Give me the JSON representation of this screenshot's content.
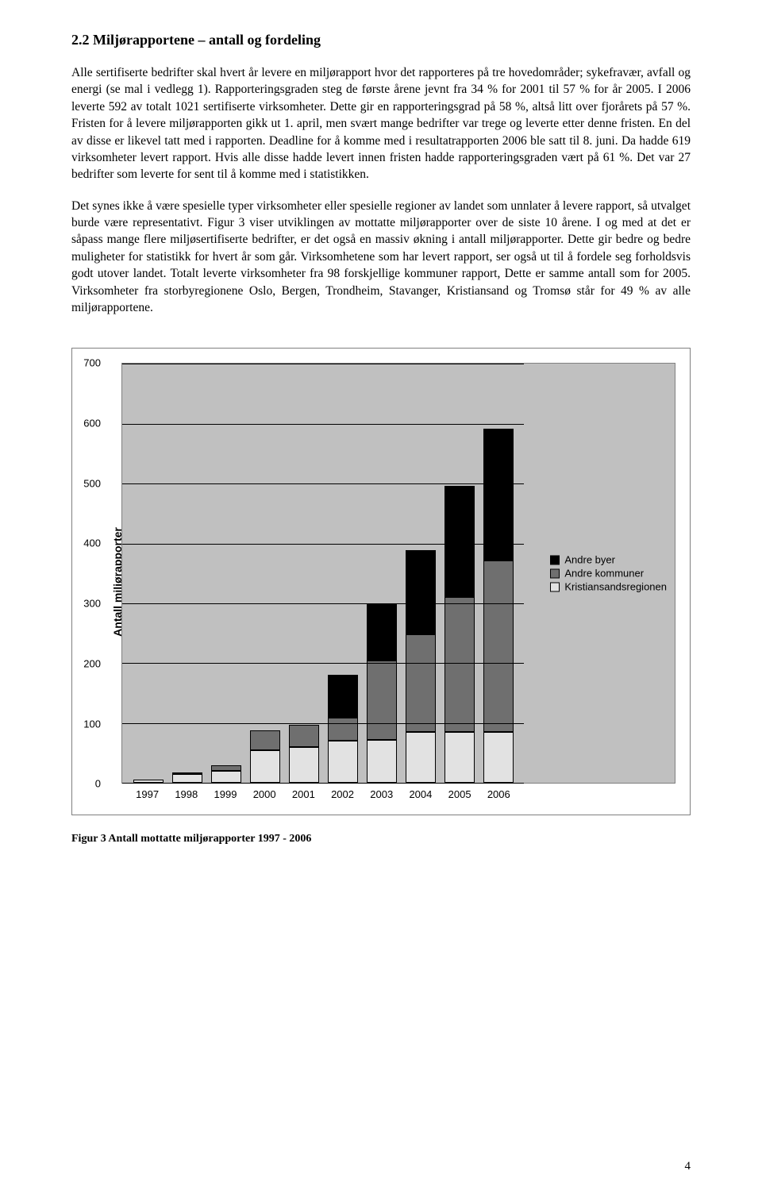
{
  "heading": "2.2 Miljørapportene – antall og fordeling",
  "para1": "Alle sertifiserte bedrifter skal hvert år levere en miljørapport hvor det rapporteres på tre hovedområder; sykefravær, avfall og energi (se mal i vedlegg 1). Rapporteringsgraden steg de første årene jevnt fra 34 % for 2001 til 57 % for år 2005. I 2006 leverte 592 av totalt 1021 sertifiserte virksomheter. Dette gir en rapporteringsgrad på 58 %, altså litt over fjorårets på 57 %. Fristen for å levere miljørapporten gikk ut 1. april, men svært mange bedrifter var trege og leverte etter denne fristen. En del av disse er likevel tatt med i rapporten. Deadline for å komme med i resultatrapporten 2006 ble satt til 8. juni. Da hadde 619 virksomheter levert rapport. Hvis alle disse hadde levert innen fristen hadde rapporteringsgraden vært på 61 %. Det var 27 bedrifter som leverte for sent til å komme med i statistikken.",
  "para2": "Det synes ikke å være spesielle typer virksomheter eller spesielle regioner av landet som unnlater å levere rapport, så utvalget burde være representativt. Figur 3 viser utviklingen av mottatte miljørapporter over de siste 10 årene. I og med at det er såpass mange flere miljøsertifiserte bedrifter, er det også en massiv økning i antall miljørapporter. Dette gir bedre og bedre muligheter for statistikk for hvert år som går. Virksomhetene som har levert rapport, ser også ut til å fordele seg forholdsvis godt utover landet. Totalt leverte virksomheter fra 98 forskjellige kommuner rapport, Dette er samme antall som for 2005. Virksomheter fra storbyregionene Oslo, Bergen, Trondheim, Stavanger, Kristiansand og Tromsø står for 49 % av alle miljørapportene.",
  "chart": {
    "type": "stacked-bar",
    "ylabel": "Antall miljørapporter",
    "ylim": [
      0,
      700
    ],
    "ytick_step": 100,
    "yticks": [
      0,
      100,
      200,
      300,
      400,
      500,
      600,
      700
    ],
    "categories": [
      "1997",
      "1998",
      "1999",
      "2000",
      "2001",
      "2002",
      "2003",
      "2004",
      "2005",
      "2006"
    ],
    "series": [
      {
        "name": "Andre byer",
        "color": "#000000"
      },
      {
        "name": "Andre kommuner",
        "color": "#6f6f6f"
      },
      {
        "name": "Kristiansandsregionen",
        "color": "#e2e2e2"
      }
    ],
    "stacks": [
      {
        "kr": 5,
        "ak": 0,
        "ab": 0
      },
      {
        "kr": 15,
        "ak": 2,
        "ab": 0
      },
      {
        "kr": 20,
        "ak": 10,
        "ab": 0
      },
      {
        "kr": 55,
        "ak": 32,
        "ab": 0
      },
      {
        "kr": 60,
        "ak": 37,
        "ab": 0
      },
      {
        "kr": 70,
        "ak": 38,
        "ab": 72
      },
      {
        "kr": 72,
        "ak": 132,
        "ab": 93
      },
      {
        "kr": 85,
        "ak": 163,
        "ab": 140
      },
      {
        "kr": 85,
        "ak": 225,
        "ab": 185
      },
      {
        "kr": 85,
        "ak": 285,
        "ab": 220
      }
    ],
    "background_color": "#c0c0c0",
    "grid_color": "#000000",
    "legend": [
      "Andre byer",
      "Andre kommuner",
      "Kristiansandsregionen"
    ]
  },
  "caption": "Figur 3 Antall mottatte miljørapporter 1997 - 2006",
  "page_number": "4"
}
